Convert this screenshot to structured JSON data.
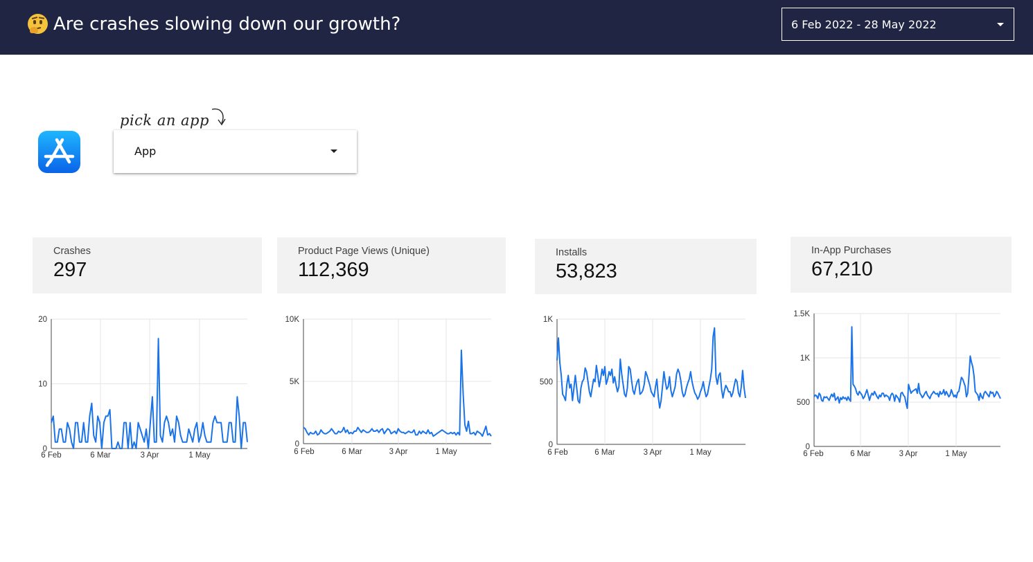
{
  "header": {
    "title": "Are crashes slowing down our growth?",
    "emoji_icon": "thinking-face-icon",
    "date_range": "6 Feb 2022 - 28 May 2022",
    "background": "#1f2542"
  },
  "app_picker": {
    "hint": "pick an app",
    "value": "App",
    "logo_icon": "app-store-icon"
  },
  "colors": {
    "line": "#1a73e8",
    "card_bg": "#f2f2f2"
  },
  "kpis": [
    {
      "label": "Crashes",
      "value": "297"
    },
    {
      "label": "Product Page Views (Unique)",
      "value": "112,369"
    },
    {
      "label": "Installs",
      "value": "53,823"
    },
    {
      "label": "In-App Purchases",
      "value": "67,210"
    }
  ],
  "chart_data": [
    {
      "type": "line",
      "title": "",
      "xlabel": "",
      "ylabel": "",
      "x_ticks": [
        "6 Feb",
        "6 Mar",
        "3 Apr",
        "1 May"
      ],
      "y_ticks": [
        "0",
        "10",
        "20"
      ],
      "y_tick_values": [
        0,
        10,
        20
      ],
      "ylim": [
        0,
        20
      ],
      "grid": true,
      "series": [
        {
          "values": [
            4,
            5,
            1,
            1,
            3,
            3,
            1,
            1,
            4,
            3,
            1,
            0,
            4,
            4,
            1,
            1,
            4,
            1,
            1,
            5,
            7,
            2,
            1,
            5,
            4,
            0,
            4,
            5,
            5,
            6,
            0,
            0,
            0,
            1,
            0,
            0,
            4,
            4,
            0,
            4,
            0,
            1,
            0,
            4,
            3,
            2,
            1,
            3,
            0,
            4,
            8,
            1,
            1,
            17,
            2,
            1,
            4,
            5,
            4,
            2,
            3,
            1,
            5,
            4,
            2,
            1,
            1,
            1,
            3,
            2,
            1,
            3,
            4,
            1,
            2,
            4,
            2,
            1,
            1,
            1,
            4,
            5,
            4,
            4,
            4,
            1,
            1,
            1,
            4,
            4,
            1,
            1,
            8,
            5,
            0,
            4,
            4,
            1
          ]
        }
      ]
    },
    {
      "type": "line",
      "title": "",
      "xlabel": "",
      "ylabel": "",
      "x_ticks": [
        "6 Feb",
        "6 Mar",
        "3 Apr",
        "1 May"
      ],
      "y_ticks": [
        "0",
        "5K",
        "10K"
      ],
      "y_tick_values": [
        0,
        5000,
        10000
      ],
      "ylim": [
        0,
        10000
      ],
      "grid": true,
      "series": [
        {
          "values": [
            1300,
            1200,
            900,
            700,
            900,
            800,
            800,
            1000,
            700,
            800,
            1100,
            900,
            800,
            800,
            900,
            1000,
            1200,
            1000,
            800,
            800,
            1000,
            900,
            1000,
            1300,
            900,
            1100,
            800,
            900,
            800,
            1000,
            1000,
            1300,
            1100,
            900,
            1100,
            1000,
            900,
            900,
            1000,
            1200,
            1000,
            1000,
            1100,
            900,
            1100,
            1200,
            800,
            1000,
            1200,
            1100,
            800,
            900,
            1000,
            800,
            1200,
            1000,
            900,
            900,
            800,
            900,
            1000,
            900,
            900,
            1100,
            700,
            700,
            1000,
            800,
            1000,
            900,
            800,
            1100,
            800,
            900,
            600,
            700,
            800,
            900,
            1000,
            1100,
            1000,
            900,
            800,
            800,
            900,
            800,
            900,
            700,
            900,
            700,
            7500,
            4000,
            1500,
            1000,
            1800,
            800,
            800,
            900,
            700,
            1000,
            900,
            800,
            600,
            1000,
            1400,
            700,
            800,
            600
          ]
        }
      ]
    },
    {
      "type": "line",
      "title": "",
      "xlabel": "",
      "ylabel": "",
      "x_ticks": [
        "6 Feb",
        "6 Mar",
        "3 Apr",
        "1 May"
      ],
      "y_ticks": [
        "0",
        "500",
        "1K"
      ],
      "y_tick_values": [
        0,
        500,
        1000
      ],
      "ylim": [
        0,
        1000
      ],
      "grid": true,
      "series": [
        {
          "values": [
            670,
            850,
            650,
            550,
            400,
            380,
            350,
            480,
            550,
            450,
            480,
            350,
            450,
            550,
            450,
            350,
            330,
            450,
            500,
            520,
            610,
            580,
            500,
            420,
            380,
            450,
            520,
            500,
            630,
            550,
            460,
            520,
            600,
            550,
            620,
            480,
            520,
            580,
            550,
            600,
            490,
            540,
            470,
            420,
            460,
            680,
            560,
            480,
            400,
            380,
            450,
            620,
            600,
            510,
            430,
            400,
            460,
            500,
            520,
            400,
            410,
            430,
            480,
            580,
            550,
            510,
            470,
            420,
            400,
            380,
            460,
            520,
            380,
            290,
            350,
            460,
            580,
            500,
            440,
            460,
            540,
            430,
            380,
            420,
            460,
            560,
            600,
            570,
            510,
            420,
            380,
            400,
            450,
            490,
            520,
            580,
            500,
            450,
            410,
            390,
            360,
            380,
            420,
            450,
            500,
            430,
            380,
            400,
            460,
            520,
            600,
            860,
            930,
            540,
            480,
            550,
            570,
            440,
            370,
            430,
            470,
            450,
            420,
            420,
            380,
            410,
            470,
            520,
            500,
            410,
            380,
            460,
            590,
            450,
            370
          ]
        }
      ]
    },
    {
      "type": "line",
      "title": "",
      "xlabel": "",
      "ylabel": "",
      "x_ticks": [
        "6 Feb",
        "6 Mar",
        "3 Apr",
        "1 May"
      ],
      "y_ticks": [
        "0",
        "500",
        "1K",
        "1.5K"
      ],
      "y_tick_values": [
        0,
        500,
        1000,
        1500
      ],
      "ylim": [
        0,
        1500
      ],
      "grid": true,
      "series": [
        {
          "values": [
            560,
            580,
            570,
            540,
            600,
            580,
            520,
            510,
            560,
            550,
            560,
            540,
            520,
            560,
            590,
            560,
            600,
            520,
            540,
            560,
            490,
            550,
            530,
            560,
            540,
            550,
            520,
            560,
            530,
            510,
            1350,
            700,
            680,
            650,
            600,
            580,
            620,
            600,
            580,
            540,
            560,
            600,
            640,
            580,
            520,
            570,
            600,
            580,
            620,
            590,
            560,
            540,
            580,
            560,
            600,
            600,
            560,
            580,
            570,
            560,
            520,
            580,
            600,
            580,
            510,
            580,
            560,
            540,
            500,
            600,
            610,
            580,
            560,
            490,
            430,
            700,
            650,
            600,
            620,
            630,
            640,
            650,
            600,
            710,
            600,
            580,
            550,
            570,
            600,
            620,
            580,
            560,
            540,
            580,
            600,
            620,
            600,
            590,
            600,
            560,
            620,
            590,
            600,
            640,
            580,
            620,
            590,
            560,
            580,
            640,
            600,
            560,
            580,
            550,
            610,
            620,
            700,
            780,
            760,
            720,
            680,
            560,
            600,
            800,
            1020,
            950,
            900,
            800,
            620,
            600,
            580,
            520,
            600,
            560,
            540,
            600,
            620,
            600,
            580,
            560,
            620,
            600,
            610,
            560,
            580,
            620,
            600,
            570,
            540
          ]
        }
      ]
    }
  ]
}
